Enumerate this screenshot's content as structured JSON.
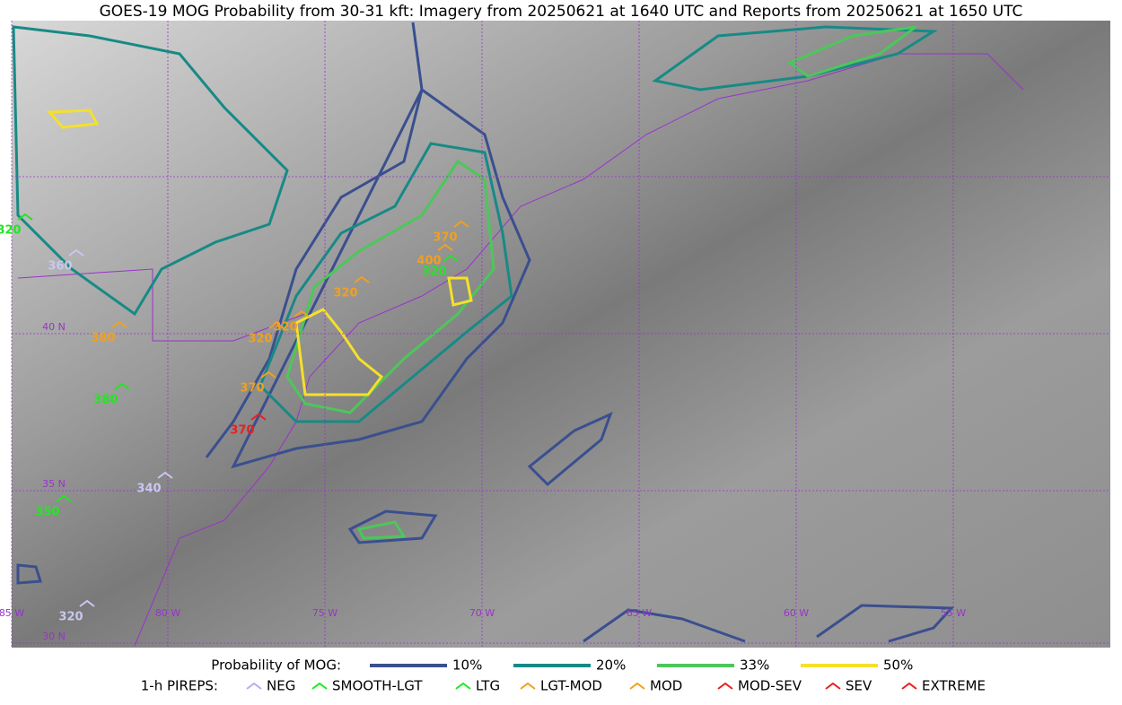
{
  "title": "GOES-19 MOG Probability from 30-31 kft: Imagery from 20250621 at 1640 UTC and Reports from 20250621 at 1650 UTC",
  "map": {
    "lon_labels": [
      "85 W",
      "80 W",
      "75 W",
      "70 W",
      "65 W",
      "60 W",
      "55 W"
    ],
    "lat_labels": [
      "40 N",
      "35 N",
      "30 N"
    ],
    "pireps": [
      {
        "label": 320,
        "color": "#22e622"
      },
      {
        "label": 360,
        "color": "#c8c8f0"
      },
      {
        "label": 380,
        "color": "#f0a020"
      },
      {
        "label": 380,
        "color": "#22e622"
      },
      {
        "label": 370,
        "color": "#f0a020"
      },
      {
        "label": 400,
        "color": "#f0a020"
      },
      {
        "label": 320,
        "color": "#22e622"
      },
      {
        "label": 320,
        "color": "#f0a020"
      },
      {
        "label": 320,
        "color": "#f0a020"
      },
      {
        "label": 320,
        "color": "#f0a020"
      },
      {
        "label": 370,
        "color": "#f0a020"
      },
      {
        "label": 370,
        "color": "#e82020"
      },
      {
        "label": 340,
        "color": "#c8c8f0"
      },
      {
        "label": 350,
        "color": "#22e622"
      },
      {
        "label": 320,
        "color": "#c8c8f0"
      }
    ]
  },
  "legend": {
    "probability": {
      "title": "Probability of MOG:",
      "items": [
        {
          "label": "10%",
          "color": "#3a4f8f"
        },
        {
          "label": "20%",
          "color": "#178a85"
        },
        {
          "label": "33%",
          "color": "#4cc75a"
        },
        {
          "label": "50%",
          "color": "#f5e02a"
        }
      ]
    },
    "pireps": {
      "title": "1-h PIREPS:",
      "items": [
        {
          "label": "NEG",
          "color": "#b0b0f0"
        },
        {
          "label": "SMOOTH-LGT",
          "color": "#22e622"
        },
        {
          "label": "LTG",
          "color": "#22e622"
        },
        {
          "label": "LGT-MOD",
          "color": "#f0a020"
        },
        {
          "label": "MOD",
          "color": "#f0a020"
        },
        {
          "label": "MOD-SEV",
          "color": "#e82020"
        },
        {
          "label": "SEV",
          "color": "#e82020"
        },
        {
          "label": "EXTREME",
          "color": "#e82020"
        }
      ]
    }
  }
}
